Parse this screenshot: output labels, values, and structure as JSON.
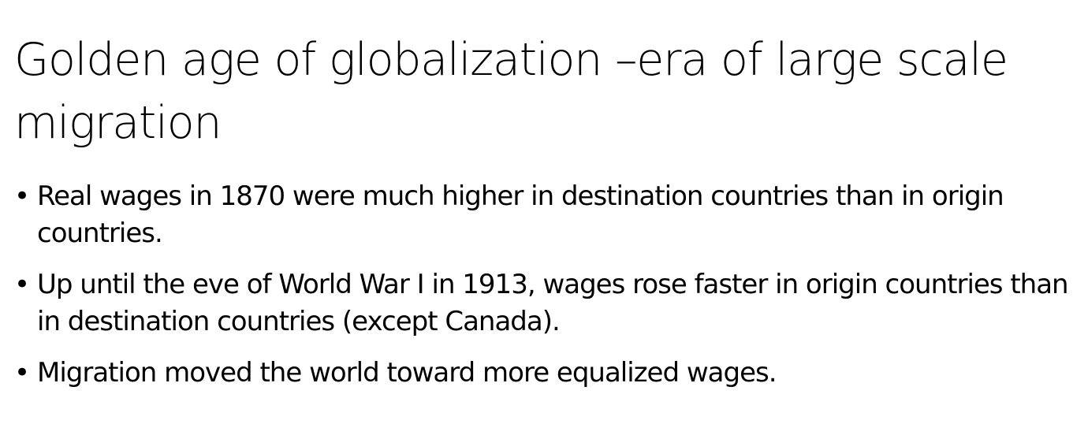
{
  "slide": {
    "title": "Golden age of globalization –era of large scale migration",
    "bullets": [
      "Real wages in 1870 were much higher in destination countries than in origin countries.",
      "Up until the eve of World War I in 1913, wages rose faster in origin countries than in destination countries (except Canada).",
      "Migration moved the world toward more equalized wages."
    ],
    "bullet_glyph": "•"
  }
}
